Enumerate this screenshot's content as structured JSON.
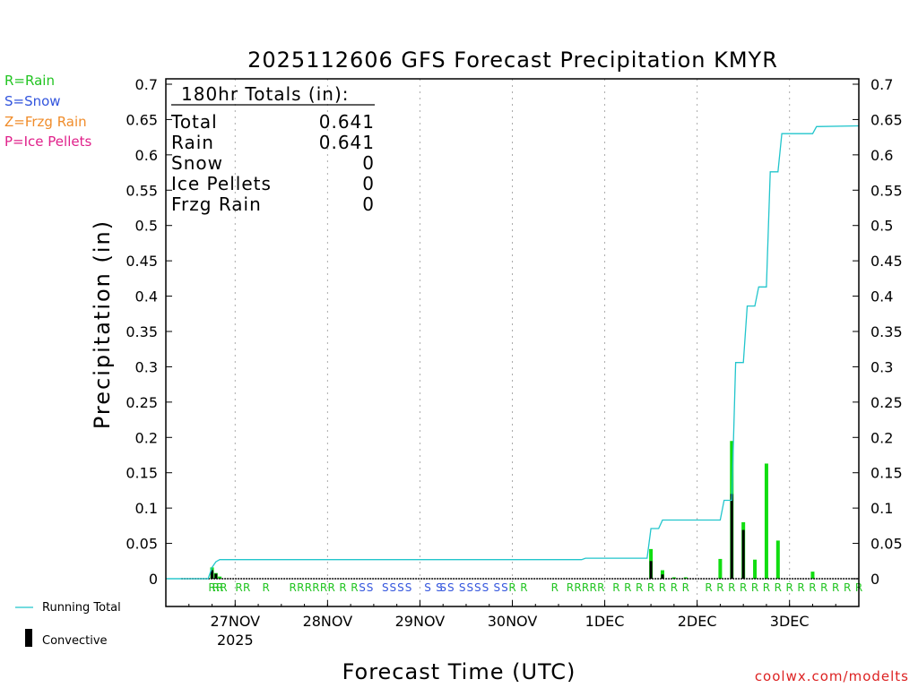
{
  "chart_data": {
    "type": "bar",
    "title": "2025112606 GFS Forecast Precipitation KMYR",
    "ylabel": "Precipitation (in)",
    "xlabel": "Forecast Time (UTC)",
    "ylim": [
      0,
      0.7
    ],
    "y_ticks": [
      "0",
      "0.05",
      "0.1",
      "0.15",
      "0.2",
      "0.25",
      "0.3",
      "0.35",
      "0.4",
      "0.45",
      "0.5",
      "0.55",
      "0.6",
      "0.65",
      "0.7"
    ],
    "xlim_hours": [
      0,
      180
    ],
    "x_ticks": [
      {
        "label": "27NOV",
        "hour": 18,
        "sub": "2025"
      },
      {
        "label": "28NOV",
        "hour": 42
      },
      {
        "label": "29NOV",
        "hour": 66
      },
      {
        "label": "30NOV",
        "hour": 90
      },
      {
        "label": "1DEC",
        "hour": 114
      },
      {
        "label": "2DEC",
        "hour": 138
      },
      {
        "label": "3DEC",
        "hour": 162
      }
    ],
    "totals": {
      "header": "180hr Totals (in):",
      "rows": [
        {
          "label": "Total",
          "value": "0.641"
        },
        {
          "label": "Rain",
          "value": "0.641"
        },
        {
          "label": "Snow",
          "value": "0"
        },
        {
          "label": "Ice Pellets",
          "value": "0"
        },
        {
          "label": "Frzg Rain",
          "value": "0"
        }
      ]
    },
    "legend": [
      {
        "label": "R=Rain",
        "color": "#22c422"
      },
      {
        "label": "S=Snow",
        "color": "#3355dd"
      },
      {
        "label": "Z=Frzg Rain",
        "color": "#f08c2a"
      },
      {
        "label": "P=Ice Pellets",
        "color": "#e0208a"
      }
    ],
    "bottom_legend": {
      "running_total": "Running Total",
      "convective": "Convective"
    },
    "series": [
      {
        "name": "Precipitation",
        "color": "#11dd11",
        "points": [
          {
            "hour": 12,
            "value": 0.016
          },
          {
            "hour": 13,
            "value": 0.008
          },
          {
            "hour": 14,
            "value": 0.003
          },
          {
            "hour": 126,
            "value": 0.042
          },
          {
            "hour": 129,
            "value": 0.012
          },
          {
            "hour": 132,
            "value": 0.002
          },
          {
            "hour": 135,
            "value": 0.002
          },
          {
            "hour": 144,
            "value": 0.028
          },
          {
            "hour": 147,
            "value": 0.195
          },
          {
            "hour": 150,
            "value": 0.08
          },
          {
            "hour": 153,
            "value": 0.027
          },
          {
            "hour": 156,
            "value": 0.163
          },
          {
            "hour": 159,
            "value": 0.054
          },
          {
            "hour": 168,
            "value": 0.01
          }
        ]
      },
      {
        "name": "Convective",
        "color": "#000000",
        "points": [
          {
            "hour": 12,
            "value": 0.012
          },
          {
            "hour": 13,
            "value": 0.007
          },
          {
            "hour": 126,
            "value": 0.025
          },
          {
            "hour": 129,
            "value": 0.006
          },
          {
            "hour": 147,
            "value": 0.12
          },
          {
            "hour": 150,
            "value": 0.069
          }
        ]
      },
      {
        "name": "Running Total",
        "type": "line",
        "color": "#22c5cc",
        "points": [
          [
            0,
            0
          ],
          [
            11,
            0
          ],
          [
            12,
            0.016
          ],
          [
            13,
            0.024
          ],
          [
            14,
            0.027
          ],
          [
            108,
            0.027
          ],
          [
            109,
            0.029
          ],
          [
            125,
            0.029
          ],
          [
            126,
            0.071
          ],
          [
            128,
            0.071
          ],
          [
            129,
            0.083
          ],
          [
            144,
            0.083
          ],
          [
            145,
            0.111
          ],
          [
            147,
            0.111
          ],
          [
            148,
            0.306
          ],
          [
            150,
            0.306
          ],
          [
            151,
            0.386
          ],
          [
            153,
            0.386
          ],
          [
            154,
            0.413
          ],
          [
            156,
            0.413
          ],
          [
            157,
            0.576
          ],
          [
            159,
            0.576
          ],
          [
            160,
            0.63
          ],
          [
            168,
            0.63
          ],
          [
            169,
            0.64
          ],
          [
            180,
            0.641
          ]
        ]
      }
    ],
    "precip_type_markers": [
      {
        "hour": 12,
        "type": "R"
      },
      {
        "hour": 13,
        "type": "R"
      },
      {
        "hour": 14,
        "type": "R"
      },
      {
        "hour": 15,
        "type": "R"
      },
      {
        "hour": 19,
        "type": "R"
      },
      {
        "hour": 21,
        "type": "R"
      },
      {
        "hour": 26,
        "type": "R"
      },
      {
        "hour": 33,
        "type": "R"
      },
      {
        "hour": 35,
        "type": "R"
      },
      {
        "hour": 37,
        "type": "R"
      },
      {
        "hour": 39,
        "type": "R"
      },
      {
        "hour": 41,
        "type": "R"
      },
      {
        "hour": 43,
        "type": "R"
      },
      {
        "hour": 46,
        "type": "R"
      },
      {
        "hour": 49,
        "type": "R"
      },
      {
        "hour": 51,
        "type": "S"
      },
      {
        "hour": 53,
        "type": "S"
      },
      {
        "hour": 57,
        "type": "S"
      },
      {
        "hour": 59,
        "type": "S"
      },
      {
        "hour": 61,
        "type": "S"
      },
      {
        "hour": 63,
        "type": "S"
      },
      {
        "hour": 68,
        "type": "S"
      },
      {
        "hour": 71,
        "type": "S"
      },
      {
        "hour": 72,
        "type": "S"
      },
      {
        "hour": 74,
        "type": "S"
      },
      {
        "hour": 77,
        "type": "S"
      },
      {
        "hour": 79,
        "type": "S"
      },
      {
        "hour": 81,
        "type": "S"
      },
      {
        "hour": 83,
        "type": "S"
      },
      {
        "hour": 86,
        "type": "S"
      },
      {
        "hour": 88,
        "type": "S"
      },
      {
        "hour": 90,
        "type": "R"
      },
      {
        "hour": 93,
        "type": "R"
      },
      {
        "hour": 101,
        "type": "R"
      },
      {
        "hour": 105,
        "type": "R"
      },
      {
        "hour": 107,
        "type": "R"
      },
      {
        "hour": 109,
        "type": "R"
      },
      {
        "hour": 111,
        "type": "R"
      },
      {
        "hour": 113,
        "type": "R"
      },
      {
        "hour": 117,
        "type": "R"
      },
      {
        "hour": 120,
        "type": "R"
      },
      {
        "hour": 123,
        "type": "R"
      },
      {
        "hour": 126,
        "type": "R"
      },
      {
        "hour": 129,
        "type": "R"
      },
      {
        "hour": 132,
        "type": "R"
      },
      {
        "hour": 135,
        "type": "R"
      },
      {
        "hour": 141,
        "type": "R"
      },
      {
        "hour": 144,
        "type": "R"
      },
      {
        "hour": 147,
        "type": "R"
      },
      {
        "hour": 150,
        "type": "R"
      },
      {
        "hour": 153,
        "type": "R"
      },
      {
        "hour": 156,
        "type": "R"
      },
      {
        "hour": 159,
        "type": "R"
      },
      {
        "hour": 162,
        "type": "R"
      },
      {
        "hour": 165,
        "type": "R"
      },
      {
        "hour": 168,
        "type": "R"
      },
      {
        "hour": 171,
        "type": "R"
      },
      {
        "hour": 174,
        "type": "R"
      },
      {
        "hour": 177,
        "type": "R"
      },
      {
        "hour": 180,
        "type": "R"
      }
    ],
    "credit": "coolwx.com/modelts",
    "credit_color": "#dd2222"
  }
}
